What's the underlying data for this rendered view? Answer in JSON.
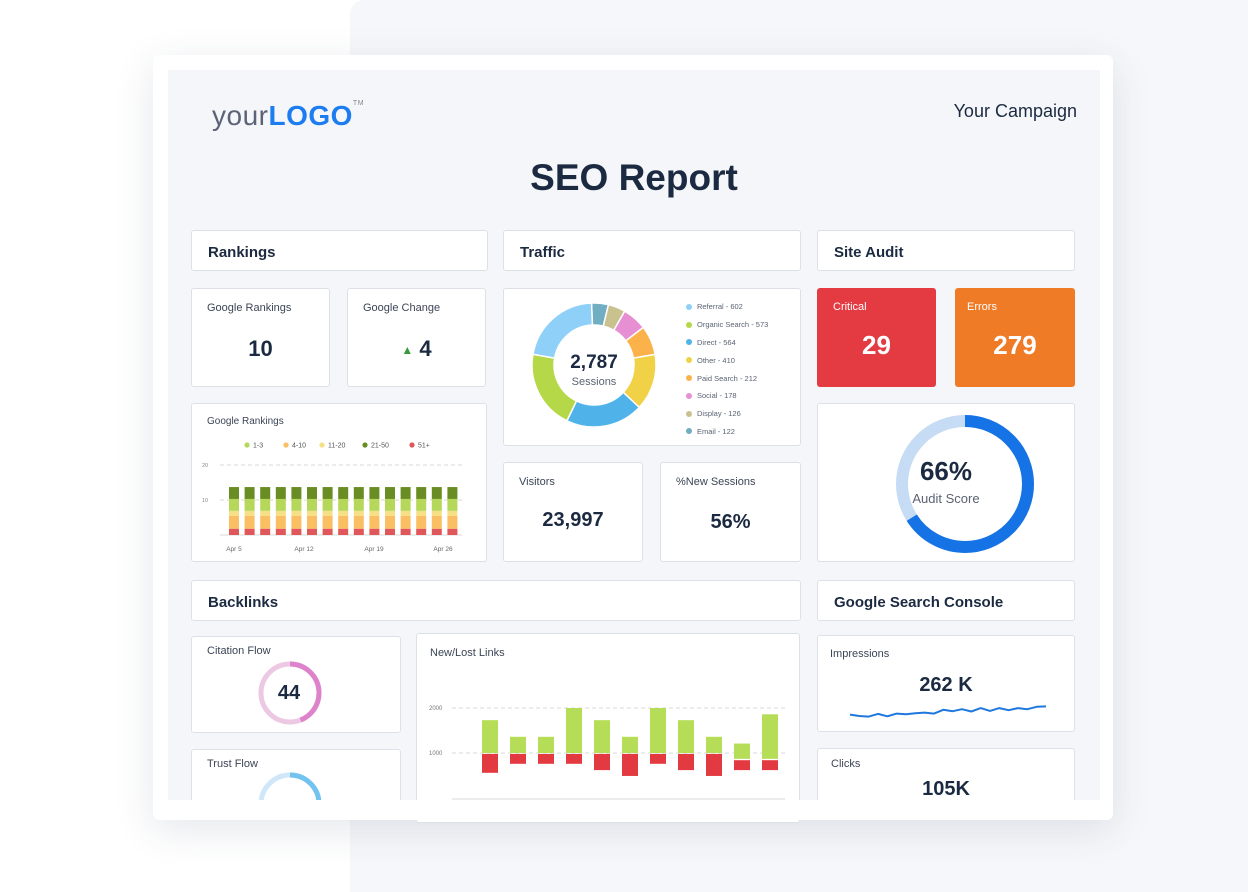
{
  "header": {
    "logo_your": "your",
    "logo_main": "LOGO",
    "logo_tm": "TM",
    "campaign": "Your Campaign",
    "title": "SEO Report"
  },
  "sections": {
    "rankings": "Rankings",
    "traffic": "Traffic",
    "site_audit": "Site Audit",
    "backlinks": "Backlinks",
    "gsc": "Google Search Console"
  },
  "rankings": {
    "google_rankings_label": "Google Rankings",
    "google_rankings_value": "10",
    "google_change_label": "Google Change",
    "google_change_value": "4",
    "change_direction": "up"
  },
  "traffic": {
    "total": "2,787",
    "total_label": "Sessions",
    "visitors_label": "Visitors",
    "visitors_value": "23,997",
    "new_sessions_label": "%New Sessions",
    "new_sessions_value": "56%"
  },
  "site_audit": {
    "critical_label": "Critical",
    "critical_value": "29",
    "errors_label": "Errors",
    "errors_value": "279",
    "score_label": "Audit Score",
    "score_text": "66%",
    "score": 66,
    "critical_color": "#e43a41",
    "errors_color": "#f07b27"
  },
  "backlinks": {
    "citation_label": "Citation Flow",
    "citation_value": "44",
    "citation": 44,
    "trust_label": "Trust Flow"
  },
  "gsc": {
    "impressions_label": "Impressions",
    "impressions_value": "262 K",
    "clicks_label": "Clicks",
    "clicks_value": "105K",
    "impressions_trend": [
      3,
      2.6,
      2.4,
      3.2,
      2.5,
      3.3,
      3.1,
      3.4,
      3.6,
      3.3,
      4.4,
      4,
      4.6,
      3.9,
      4.9,
      4.1,
      4.9,
      4.3,
      4.9,
      4.6,
      5.3,
      5.4
    ]
  },
  "chart_data": [
    {
      "type": "pie",
      "title": "",
      "center_value": "2,787",
      "center_label": "Sessions",
      "slices": [
        {
          "name": "Referral",
          "value": 602,
          "label": "Referral - 602",
          "color": "#8fd0f8"
        },
        {
          "name": "Organic Search",
          "value": 573,
          "label": "Organic Search - 573",
          "color": "#b5d849"
        },
        {
          "name": "Direct",
          "value": 564,
          "label": "Direct - 564",
          "color": "#4fb3ea"
        },
        {
          "name": "Other",
          "value": 410,
          "label": "Other - 410",
          "color": "#f1d146"
        },
        {
          "name": "Paid Search",
          "value": 212,
          "label": "Paid Search - 212",
          "color": "#fbb24a"
        },
        {
          "name": "Social",
          "value": 178,
          "label": "Social - 178",
          "color": "#e68fd2"
        },
        {
          "name": "Display",
          "value": 126,
          "label": "Display - 126",
          "color": "#c9c28f"
        },
        {
          "name": "Email",
          "value": 122,
          "label": "Email - 122",
          "color": "#72aec1"
        }
      ]
    },
    {
      "type": "bar",
      "stacked": true,
      "title": "Google Rankings",
      "ylim": [
        0,
        20
      ],
      "yticks": [
        "10",
        "20"
      ],
      "xtick_labels": [
        "Apr 5",
        "Apr 12",
        "Apr 19",
        "Apr 26"
      ],
      "legend_position": "top",
      "series": [
        {
          "name": "51+",
          "color": "#e0575b",
          "values": [
            1.8,
            1.8,
            1.8,
            1.8,
            1.8,
            1.8,
            1.8,
            1.8,
            1.8,
            1.8,
            1.8,
            1.8,
            1.8,
            1.8,
            1.8
          ]
        },
        {
          "name": "4-10",
          "color": "#fbbf63",
          "values": [
            3.7,
            3.7,
            3.7,
            3.7,
            3.7,
            3.7,
            3.7,
            3.7,
            3.7,
            3.7,
            3.7,
            3.7,
            3.7,
            3.7,
            3.7
          ]
        },
        {
          "name": "11-20",
          "color": "#f7df85",
          "values": [
            1.4,
            1.4,
            1.4,
            1.4,
            1.4,
            1.4,
            1.4,
            1.4,
            1.4,
            1.4,
            1.4,
            1.4,
            1.4,
            1.4,
            1.4
          ]
        },
        {
          "name": "1-3",
          "color": "#b5d75a",
          "values": [
            3.4,
            3.4,
            3.4,
            3.4,
            3.4,
            3.4,
            3.4,
            3.4,
            3.4,
            3.4,
            3.4,
            3.4,
            3.4,
            3.4,
            3.4
          ]
        },
        {
          "name": "21-50",
          "color": "#6a8d23",
          "values": [
            3.4,
            3.4,
            3.4,
            3.4,
            3.4,
            3.4,
            3.4,
            3.4,
            3.4,
            3.4,
            3.4,
            3.4,
            3.4,
            3.4,
            3.4
          ]
        }
      ],
      "legend_order": [
        "1-3",
        "4-10",
        "11-20",
        "21-50",
        "51+"
      ]
    },
    {
      "type": "bar",
      "title": "New/Lost Links",
      "ylim": [
        0,
        2600
      ],
      "yticks": [
        "1000",
        "2000"
      ],
      "new": [
        [
          1000,
          1730
        ],
        [
          1000,
          1360
        ],
        [
          1000,
          1360
        ],
        [
          1000,
          2000
        ],
        [
          1000,
          1730
        ],
        [
          1000,
          1360
        ],
        [
          1000,
          2000
        ],
        [
          1000,
          1730
        ],
        [
          1000,
          1360
        ],
        [
          870,
          1210
        ],
        [
          870,
          1860
        ]
      ],
      "lost": [
        [
          560,
          980
        ],
        [
          760,
          980
        ],
        [
          760,
          980
        ],
        [
          760,
          980
        ],
        [
          620,
          980
        ],
        [
          490,
          980
        ],
        [
          760,
          980
        ],
        [
          620,
          980
        ],
        [
          490,
          980
        ],
        [
          620,
          840
        ],
        [
          620,
          840
        ]
      ],
      "new_color": "#b5dd58",
      "lost_color": "#e23a40"
    }
  ]
}
